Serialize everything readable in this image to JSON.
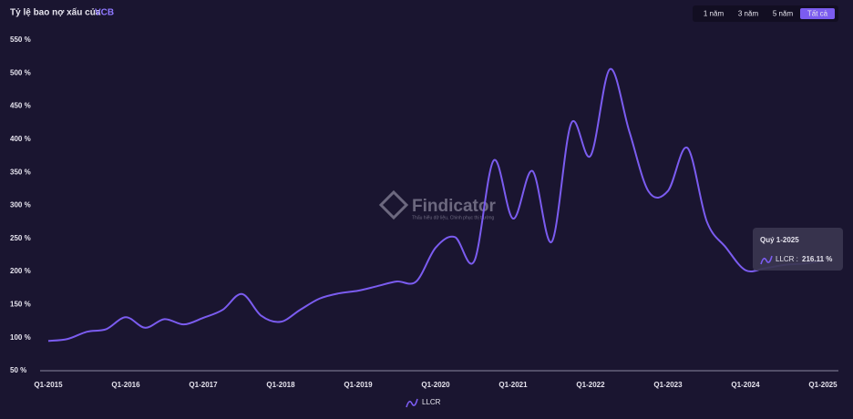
{
  "chart_data": {
    "type": "line",
    "title": "Tỷ lệ bao nợ xấu của",
    "ticker": "VCB",
    "buttons": [
      "1 năm",
      "3 năm",
      "5 năm",
      "Tất cả"
    ],
    "active_button": 3,
    "watermark": "Findicator",
    "watermark_tagline": "Thấu hiểu dữ liệu, Chinh phục thị trường",
    "categories": [
      "Q1-2015",
      null,
      null,
      null,
      "Q1-2016",
      null,
      null,
      null,
      "Q1-2017",
      null,
      null,
      null,
      "Q1-2018",
      null,
      null,
      null,
      "Q1-2019",
      null,
      null,
      null,
      "Q1-2020",
      null,
      null,
      null,
      "Q1-2021",
      null,
      null,
      null,
      "Q1-2022",
      null,
      null,
      null,
      "Q1-2023",
      null,
      null,
      null,
      "Q1-2024",
      null,
      null,
      null,
      "Q1-2025"
    ],
    "series": [
      {
        "name": "LLCR",
        "color": "#7b5cf0",
        "values": [
          95,
          98,
          109,
          113,
          131,
          115,
          128,
          120,
          130,
          142,
          166,
          133,
          124,
          142,
          159,
          167,
          171,
          178,
          185,
          185,
          236,
          252,
          216,
          368,
          280,
          352,
          245,
          424,
          375,
          506,
          412,
          321,
          322,
          387,
          276,
          236,
          202,
          205,
          210,
          212,
          216.11
        ]
      }
    ],
    "ylim": [
      50,
      550
    ],
    "yticks": [
      {
        "value": 50,
        "label": "50 %"
      },
      {
        "value": 100,
        "label": "100 %"
      },
      {
        "value": 150,
        "label": "150 %"
      },
      {
        "value": 200,
        "label": "200 %"
      },
      {
        "value": 250,
        "label": "250 %"
      },
      {
        "value": 300,
        "label": "300 %"
      },
      {
        "value": 350,
        "label": "350 %"
      },
      {
        "value": 400,
        "label": "400 %"
      },
      {
        "value": 450,
        "label": "450 %"
      },
      {
        "value": 500,
        "label": "500 %"
      },
      {
        "value": 550,
        "label": "550 %"
      }
    ],
    "grid": false,
    "tooltip": {
      "title": "Quý 1-2025",
      "label": "LLCR :",
      "value": "216.11 %"
    }
  }
}
